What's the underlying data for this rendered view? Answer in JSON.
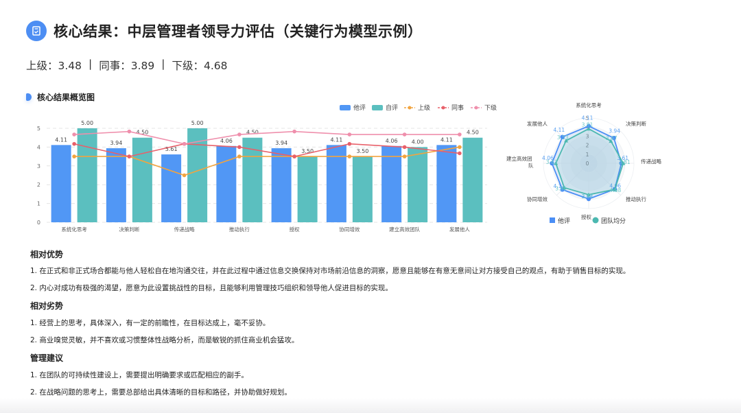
{
  "header": {
    "icon": "clipboard-check-icon",
    "title": "核心结果：中层管理者领导力评估（关键行为模型示例）"
  },
  "scores": [
    {
      "label": "上级",
      "value": "3.48"
    },
    {
      "label": "同事",
      "value": "3.89"
    },
    {
      "label": "下级",
      "value": "4.68"
    }
  ],
  "scores_text": {
    "s0": "上级：3.48",
    "s1": "同事：3.89",
    "s2": "下级：4.68",
    "separator": "|"
  },
  "section": {
    "title": "核心结果概览图"
  },
  "colors": {
    "accent": "#4d8ef3",
    "bar_other": "#5197f5",
    "bar_self": "#5bbfbf",
    "line_superior": "#f2a43f",
    "line_peer": "#e8606a",
    "line_subordinate": "#ef8fac",
    "radar_other": "#4a8ef5",
    "radar_team": "#4bb8b0"
  },
  "chart_data": [
    {
      "type": "bar",
      "title": "核心结果概览图",
      "categories": [
        "系统化思考",
        "决策判断",
        "传递战略",
        "推动执行",
        "授权",
        "协同增效",
        "建立高效团队",
        "发展他人"
      ],
      "series": [
        {
          "name": "他评",
          "type": "bar",
          "values": [
            4.11,
            3.94,
            3.61,
            4.06,
            3.94,
            4.11,
            4.06,
            4.11
          ]
        },
        {
          "name": "自评",
          "type": "bar",
          "values": [
            5.0,
            4.5,
            5.0,
            4.5,
            3.5,
            3.5,
            4.0,
            4.5
          ]
        },
        {
          "name": "上级",
          "type": "line",
          "values": [
            3.5,
            3.5,
            2.5,
            3.5,
            3.5,
            3.5,
            3.5,
            4.0
          ]
        },
        {
          "name": "同事",
          "type": "line",
          "values": [
            4.17,
            3.5,
            4.17,
            4.0,
            3.5,
            4.17,
            4.0,
            3.67
          ]
        },
        {
          "name": "下级",
          "type": "line",
          "values": [
            4.67,
            4.83,
            4.17,
            4.67,
            4.83,
            4.67,
            4.67,
            4.67
          ]
        }
      ],
      "legend": [
        "他评",
        "自评",
        "上级",
        "同事",
        "下级"
      ],
      "legend_position": "top-right",
      "yticks": [
        "0",
        "1",
        "2",
        "3",
        "4",
        "5"
      ],
      "ylim": [
        0,
        5
      ],
      "grid": true,
      "xlabel": "",
      "ylabel": ""
    },
    {
      "type": "radar",
      "categories": [
        "系统化思考",
        "决策判断",
        "传递战略",
        "推动执行",
        "授权",
        "协同增效",
        "建立高效团队",
        "发展他人"
      ],
      "series": [
        {
          "name": "他评",
          "values": [
            4.11,
            3.94,
            3.61,
            4.06,
            3.94,
            4.11,
            4.06,
            4.11
          ]
        },
        {
          "name": "团队均分",
          "values": [
            3.81,
            3.47,
            3.81,
            4.08,
            3.47,
            3.81,
            3.63,
            3.53
          ]
        }
      ],
      "rticks": [
        "0",
        "1",
        "2",
        "3",
        "4",
        "5"
      ],
      "legend": [
        "他评",
        "团队均分"
      ],
      "legend_position": "bottom"
    }
  ],
  "radar_labels": {
    "c0": "系统化思考",
    "c1": "决策判断",
    "c2": "传递战略",
    "c3": "推动执行",
    "c4": "授权",
    "c5": "协同增效",
    "c6a": "建立高效团",
    "c6b": "队",
    "c7": "发展他人"
  },
  "legend": {
    "other": "他评",
    "self": "自评",
    "superior": "上级",
    "peer": "同事",
    "subordinate": "下级",
    "team_avg": "团队均分"
  },
  "strengths": {
    "heading": "相对优势",
    "items": [
      "1. 在正式和非正式场合都能与他人轻松自在地沟通交往，并在此过程中通过信息交换保持对市场前沿信息的洞察，愿意且能够在有意无意间让对方接受自己的观点，有助于销售目标的实现。",
      "2. 内心对成功有极强的渴望，愿意为此设置挑战性的目标，且能够利用管理技巧组织和领导他人促进目标的实现。"
    ]
  },
  "weaknesses": {
    "heading": "相对劣势",
    "items": [
      "1. 经营上的思考，具体深入，有一定的前瞻性，在目标达成上，毫不妥协。",
      "2. 商业嗅觉灵敏，并不喜欢或习惯整体性战略分析，而是敏锐的抓住商业机会猛攻。"
    ]
  },
  "suggestions": {
    "heading": "管理建议",
    "items": [
      "1. 在团队的可持续性建设上，需要提出明确要求或匹配相应的副手。",
      "2. 在战略问题的思考上，需要总部给出具体清晰的目标和路径，并协助做好规划。"
    ]
  }
}
